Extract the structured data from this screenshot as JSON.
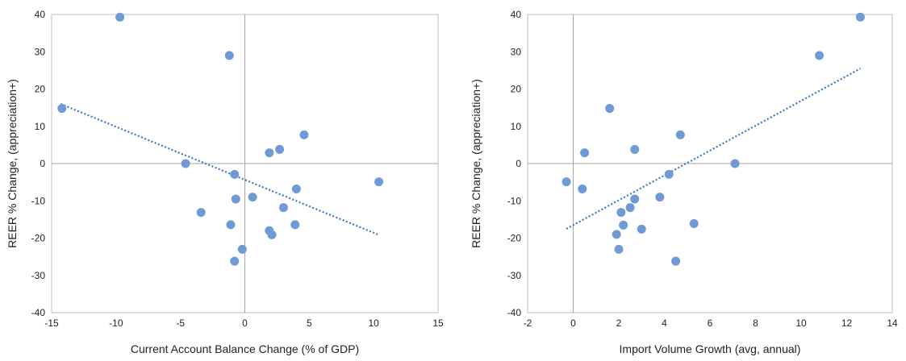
{
  "chart_data": [
    {
      "type": "scatter",
      "xlabel": "Current Account Balance Change (% of GDP)",
      "ylabel": "REER % Change, (appreciation+)",
      "xlim": [
        -15,
        15
      ],
      "ylim": [
        -40,
        40
      ],
      "xticks": [
        -15,
        -10,
        -5,
        0,
        5,
        10,
        15
      ],
      "yticks": [
        -40,
        -30,
        -20,
        -10,
        0,
        10,
        20,
        30,
        40
      ],
      "grid": false,
      "legend": "none",
      "marker_color": "#6f9ad6",
      "trendline_color": "#3a78c2",
      "points": [
        {
          "x": -9.7,
          "y": 39.3
        },
        {
          "x": -1.2,
          "y": 29.0
        },
        {
          "x": -14.2,
          "y": 14.8
        },
        {
          "x": 4.6,
          "y": 7.7
        },
        {
          "x": 2.7,
          "y": 3.8
        },
        {
          "x": 1.9,
          "y": 2.9
        },
        {
          "x": -4.6,
          "y": 0.0
        },
        {
          "x": -0.8,
          "y": -2.9
        },
        {
          "x": 10.4,
          "y": -4.9
        },
        {
          "x": 4.0,
          "y": -6.8
        },
        {
          "x": 0.6,
          "y": -9.0
        },
        {
          "x": -0.7,
          "y": -9.5
        },
        {
          "x": 3.0,
          "y": -11.8
        },
        {
          "x": -3.4,
          "y": -13.1
        },
        {
          "x": -1.1,
          "y": -16.4
        },
        {
          "x": 3.9,
          "y": -16.4
        },
        {
          "x": 1.9,
          "y": -18.0
        },
        {
          "x": 2.1,
          "y": -19.1
        },
        {
          "x": -0.2,
          "y": -23.0
        },
        {
          "x": -0.8,
          "y": -26.2
        }
      ],
      "trendline": [
        {
          "x": -14.3,
          "y": 16.0
        },
        {
          "x": 10.3,
          "y": -19.0
        }
      ]
    },
    {
      "type": "scatter",
      "xlabel": "Import Volume Growth (avg, annual)",
      "ylabel": "REER % Change, (appreciation+)",
      "xlim": [
        -2,
        14
      ],
      "ylim": [
        -40,
        40
      ],
      "xticks": [
        -2,
        0,
        2,
        4,
        6,
        8,
        10,
        12,
        14
      ],
      "yticks": [
        -40,
        -30,
        -20,
        -10,
        0,
        10,
        20,
        30,
        40
      ],
      "grid": false,
      "legend": "none",
      "marker_color": "#6f9ad6",
      "trendline_color": "#3a78c2",
      "points": [
        {
          "x": 12.6,
          "y": 39.3
        },
        {
          "x": 10.8,
          "y": 29.0
        },
        {
          "x": 1.6,
          "y": 14.8
        },
        {
          "x": 4.7,
          "y": 7.7
        },
        {
          "x": 2.7,
          "y": 3.8
        },
        {
          "x": 0.5,
          "y": 2.9
        },
        {
          "x": 7.1,
          "y": 0.0
        },
        {
          "x": 4.2,
          "y": -2.9
        },
        {
          "x": -0.3,
          "y": -4.9
        },
        {
          "x": 0.4,
          "y": -6.8
        },
        {
          "x": 3.8,
          "y": -9.0
        },
        {
          "x": 2.7,
          "y": -9.5
        },
        {
          "x": 2.5,
          "y": -11.8
        },
        {
          "x": 2.1,
          "y": -13.1
        },
        {
          "x": 5.3,
          "y": -16.1
        },
        {
          "x": 2.2,
          "y": -16.5
        },
        {
          "x": 3.0,
          "y": -17.6
        },
        {
          "x": 1.9,
          "y": -19.0
        },
        {
          "x": 2.0,
          "y": -23.0
        },
        {
          "x": 4.5,
          "y": -26.2
        }
      ],
      "trendline": [
        {
          "x": -0.3,
          "y": -17.5
        },
        {
          "x": 12.6,
          "y": 25.5
        }
      ]
    }
  ]
}
